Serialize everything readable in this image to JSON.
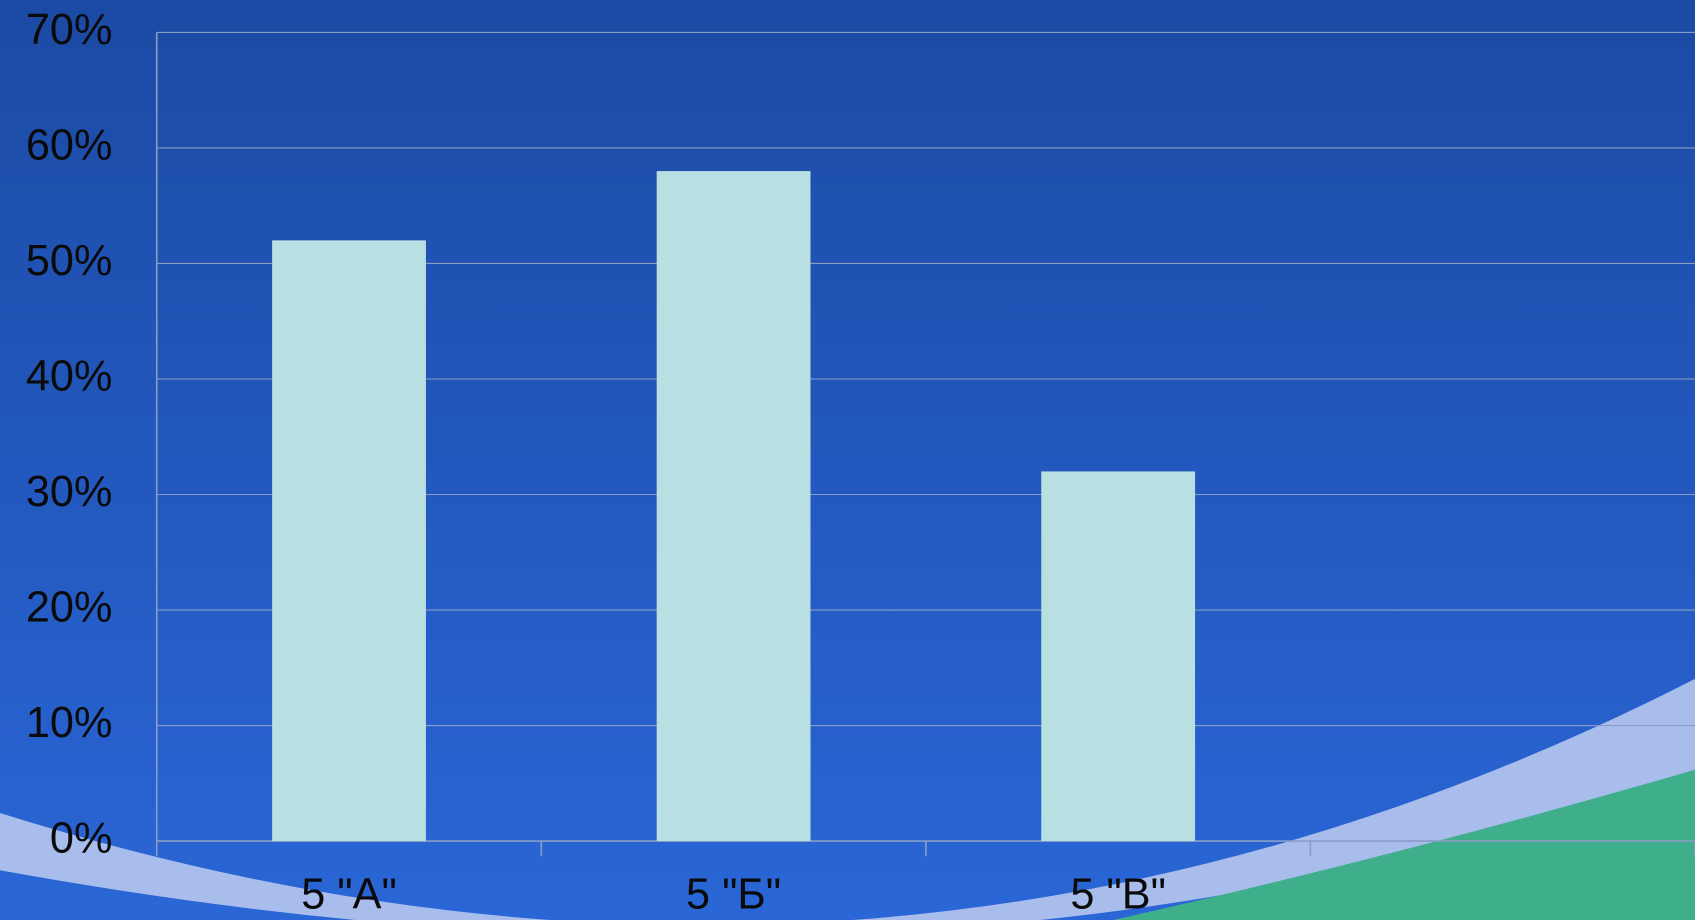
{
  "chart_data": {
    "type": "bar",
    "categories": [
      "5 \"А\"",
      "5 \"Б\"",
      "5 \"В\"",
      null
    ],
    "values": [
      52,
      58,
      32,
      null
    ],
    "color": "#b8dfe1",
    "ylim": [
      0,
      70
    ],
    "yticks": [
      {
        "value": 0,
        "label": "0%"
      },
      {
        "value": 10,
        "label": "10%"
      },
      {
        "value": 20,
        "label": "20%"
      },
      {
        "value": 30,
        "label": "30%"
      },
      {
        "value": 40,
        "label": "40%"
      },
      {
        "value": 50,
        "label": "50%"
      },
      {
        "value": 60,
        "label": "60%"
      },
      {
        "value": 70,
        "label": "70%"
      }
    ],
    "grid": true
  }
}
